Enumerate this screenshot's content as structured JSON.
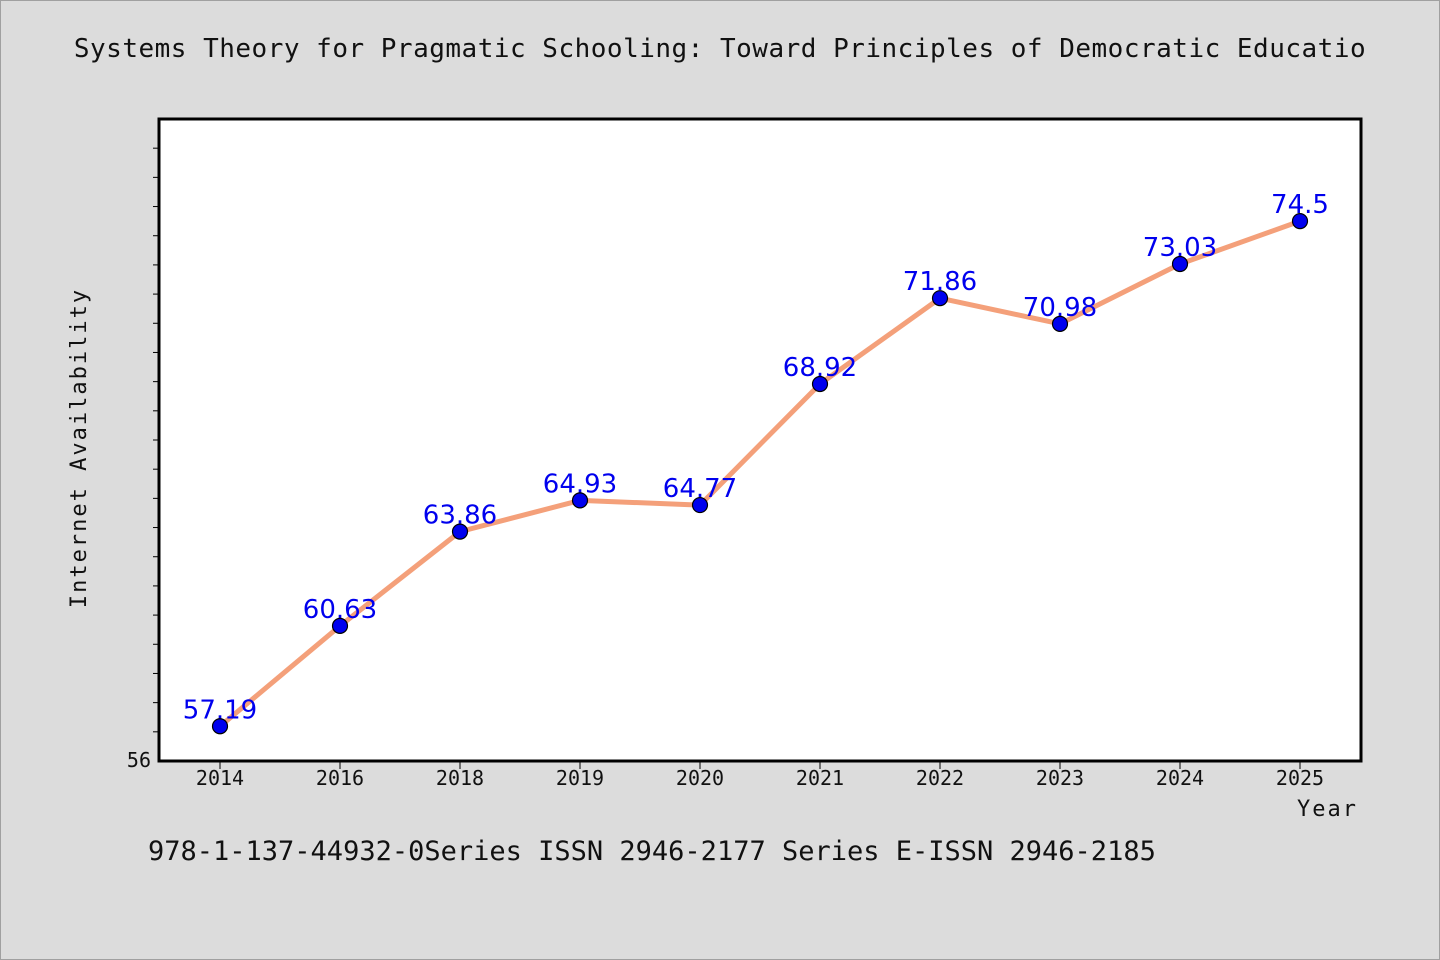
{
  "colors": {
    "background": "#dcdcdc",
    "plot_background": "#ffffff",
    "line": "#f4a07a",
    "marker": "#0000ee",
    "label": "#0000ee"
  },
  "title_text": "Systems Theory for Pragmatic Schooling: Toward Principles of Democratic Educatio",
  "footer_text": "978-1-137-44932-0Series ISSN 2946-2177 Series E-ISSN 2946-2185",
  "chart_data": {
    "type": "line",
    "title": "Systems Theory for Pragmatic Schooling: Toward Principles of Democratic Educatio",
    "xlabel": "Year",
    "ylabel": "Internet Availability",
    "categories": [
      "2014",
      "2016",
      "2018",
      "2019",
      "2020",
      "2021",
      "2022",
      "2023",
      "2024",
      "2025"
    ],
    "values": [
      57.19,
      60.63,
      63.86,
      64.93,
      64.77,
      68.92,
      71.86,
      70.98,
      73.03,
      74.5
    ],
    "value_labels": [
      "57.19",
      "60.63",
      "63.86",
      "64.93",
      "64.77",
      "68.92",
      "71.86",
      "70.98",
      "73.03",
      "74.5"
    ],
    "ylim": [
      56,
      78
    ],
    "ytick_labels": [
      "56"
    ],
    "grid": false,
    "legend": "none"
  }
}
